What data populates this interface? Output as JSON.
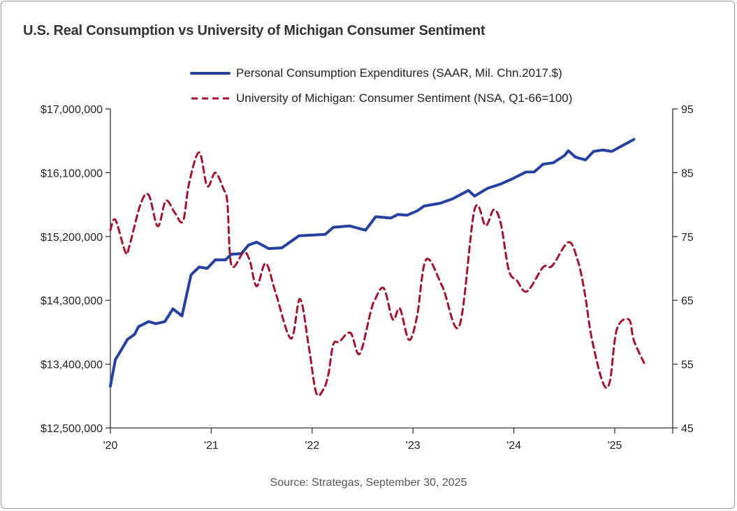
{
  "chart_data": {
    "type": "line",
    "title": "U.S. Real Consumption vs University of Michigan Consumer Sentiment",
    "source": "Source: Strategas, September 30, 2025",
    "legend_placement": "top",
    "grid": false,
    "x_ticks": [
      "'20",
      "'21",
      "'22",
      "'23",
      "'24",
      "'25"
    ],
    "x_tick_values": [
      2020,
      2021,
      2022,
      2023,
      2024,
      2025
    ],
    "xlim": [
      2020,
      2025.56
    ],
    "y_left": {
      "ticks": [
        "$17,000,000",
        "$16,100,000",
        "$15,200,000",
        "$14,300,000",
        "$13,400,000",
        "$12,500,000"
      ],
      "tick_values": [
        17000000,
        16100000,
        15200000,
        14300000,
        13400000,
        12500000
      ],
      "lim": [
        12500000,
        17000000
      ]
    },
    "y_right": {
      "ticks": [
        "95",
        "85",
        "75",
        "65",
        "55",
        "45"
      ],
      "tick_values": [
        95,
        85,
        75,
        65,
        55,
        45
      ],
      "lim": [
        45,
        95
      ]
    },
    "series": [
      {
        "name": "Personal Consumption Expenditures (SAAR, Mil. Chn.2017.$)",
        "axis": "left",
        "color": "#2341a0",
        "style": "solid",
        "x": [
          2020.0,
          2020.05,
          2020.1,
          2020.17,
          2020.24,
          2020.28,
          2020.38,
          2020.45,
          2020.54,
          2020.62,
          2020.71,
          2020.8,
          2020.88,
          2020.96,
          2021.04,
          2021.14,
          2021.2,
          2021.3,
          2021.37,
          2021.45,
          2021.57,
          2021.7,
          2021.87,
          2022.13,
          2022.21,
          2022.37,
          2022.53,
          2022.63,
          2022.78,
          2022.85,
          2022.94,
          2023.04,
          2023.11,
          2023.27,
          2023.39,
          2023.55,
          2023.61,
          2023.74,
          2023.87,
          2023.98,
          2024.12,
          2024.2,
          2024.29,
          2024.39,
          2024.5,
          2024.54,
          2024.61,
          2024.71,
          2024.79,
          2024.88,
          2024.97,
          2025.19
        ],
        "values": [
          13090000,
          13465000,
          13580000,
          13750000,
          13820000,
          13930000,
          14000000,
          13970000,
          14000000,
          14180000,
          14080000,
          14660000,
          14770000,
          14750000,
          14870000,
          14870000,
          14950000,
          14960000,
          15080000,
          15120000,
          15030000,
          15040000,
          15210000,
          15230000,
          15330000,
          15350000,
          15290000,
          15480000,
          15460000,
          15510000,
          15500000,
          15560000,
          15630000,
          15670000,
          15730000,
          15850000,
          15770000,
          15880000,
          15940000,
          16010000,
          16110000,
          16110000,
          16220000,
          16240000,
          16340000,
          16410000,
          16320000,
          16280000,
          16400000,
          16420000,
          16400000,
          16570000
        ]
      },
      {
        "name": "University of Michigan: Consumer Sentiment (NSA, Q1-66=100)",
        "axis": "right",
        "color": "#a3122f",
        "style": "dashed",
        "x": [
          2020.0,
          2020.05,
          2020.15,
          2020.19,
          2020.3,
          2020.38,
          2020.47,
          2020.55,
          2020.64,
          2020.72,
          2020.78,
          2020.88,
          2020.96,
          2021.04,
          2021.12,
          2021.16,
          2021.2,
          2021.32,
          2021.38,
          2021.45,
          2021.54,
          2021.64,
          2021.79,
          2021.88,
          2021.97,
          2022.04,
          2022.11,
          2022.16,
          2022.21,
          2022.27,
          2022.38,
          2022.47,
          2022.58,
          2022.62,
          2022.71,
          2022.8,
          2022.87,
          2022.96,
          2023.04,
          2023.13,
          2023.29,
          2023.46,
          2023.61,
          2023.72,
          2023.8,
          2023.87,
          2023.95,
          2024.03,
          2024.13,
          2024.29,
          2024.38,
          2024.54,
          2024.63,
          2024.7,
          2024.77,
          2024.88,
          2024.95,
          2025.02,
          2025.14,
          2025.19,
          2025.29
        ],
        "values": [
          76.0,
          77.6,
          72.5,
          73.6,
          80.1,
          81.5,
          76.6,
          80.6,
          78.7,
          77.4,
          83.3,
          88.2,
          82.9,
          85.0,
          82.5,
          80.3,
          70.5,
          72.5,
          71.3,
          67.2,
          70.8,
          66.1,
          59.0,
          65.2,
          57.4,
          50.5,
          51.0,
          53.3,
          58.1,
          58.5,
          59.9,
          56.6,
          63.2,
          65.0,
          66.9,
          62.0,
          63.7,
          58.8,
          62.5,
          71.4,
          67.2,
          61.0,
          79.2,
          76.7,
          79.2,
          77.1,
          69.7,
          68.1,
          66.4,
          70.2,
          70.4,
          74.1,
          71.4,
          66.4,
          59.2,
          52.2,
          52.2,
          60.4,
          62.0,
          58.7,
          55.2
        ]
      }
    ]
  }
}
